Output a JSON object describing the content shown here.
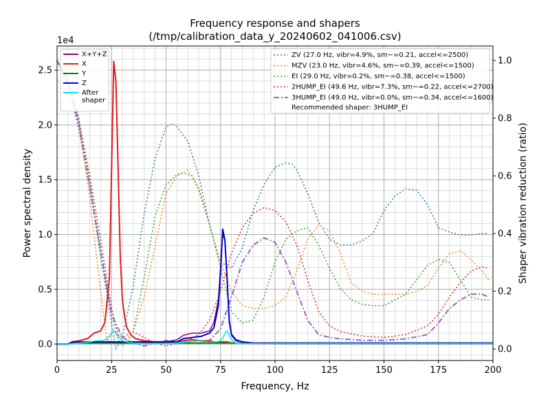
{
  "chart_data": {
    "type": "line",
    "title": "Frequency response and shapers",
    "subtitle": "(/tmp/calibration_data_y_20240602_041006.csv)",
    "xlabel": "Frequency, Hz",
    "ylabel": "Power spectral density",
    "y2label": "Shaper vibration reduction (ratio)",
    "y_offset_text": "1e4",
    "xlim": [
      0,
      200
    ],
    "ylim": [
      -0.15,
      2.72
    ],
    "y2lim": [
      -0.04,
      1.05
    ],
    "x_ticks": [
      0,
      25,
      50,
      75,
      100,
      125,
      150,
      175,
      200
    ],
    "x_tick_labels": [
      "0",
      "25",
      "50",
      "75",
      "100",
      "125",
      "150",
      "175",
      "200"
    ],
    "y_ticks": [
      0.0,
      0.5,
      1.0,
      1.5,
      2.0,
      2.5
    ],
    "y_tick_labels": [
      "0.0",
      "0.5",
      "1.0",
      "1.5",
      "2.0",
      "2.5"
    ],
    "y2_ticks": [
      0.0,
      0.2,
      0.4,
      0.6,
      0.8,
      1.0
    ],
    "y2_tick_labels": [
      "0.0",
      "0.2",
      "0.4",
      "0.6",
      "0.8",
      "1.0"
    ],
    "grid": true,
    "legend_left_placement": "top-left",
    "legend_right_placement": "top-right",
    "recommended_text": "Recommended shaper: 3HUMP_EI",
    "series": [
      {
        "name": "X+Y+Z",
        "axis": "left",
        "color": "#800080",
        "dash": "solid",
        "width": 1.5,
        "x": [
          0,
          5,
          7,
          10,
          14,
          17,
          20,
          22,
          24,
          25,
          26,
          27,
          28,
          29,
          30,
          31,
          32,
          34,
          36,
          40,
          45,
          50,
          55,
          58,
          62,
          66,
          70,
          72,
          74,
          75,
          76,
          77,
          78,
          79,
          80,
          82,
          85,
          90,
          95,
          100,
          110,
          130,
          150,
          170,
          200
        ],
        "y": [
          0,
          0,
          0.02,
          0.03,
          0.05,
          0.1,
          0.12,
          0.2,
          0.6,
          1.6,
          2.58,
          2.4,
          1.6,
          0.8,
          0.4,
          0.25,
          0.15,
          0.08,
          0.05,
          0.03,
          0.02,
          0.02,
          0.04,
          0.08,
          0.1,
          0.1,
          0.12,
          0.2,
          0.4,
          0.7,
          1.0,
          0.95,
          0.6,
          0.2,
          0.08,
          0.03,
          0.02,
          0.01,
          0.01,
          0.01,
          0.01,
          0.01,
          0.01,
          0.01,
          0.01
        ]
      },
      {
        "name": "X",
        "axis": "left",
        "color": "#e31a1c",
        "dash": "solid",
        "width": 2,
        "x": [
          0,
          5,
          7,
          10,
          14,
          17,
          20,
          22,
          24,
          25,
          26,
          27,
          28,
          29,
          30,
          31,
          32,
          34,
          36,
          40,
          45,
          50,
          55,
          58,
          62,
          66,
          70,
          72,
          74,
          76,
          78,
          80,
          85,
          90,
          100,
          130,
          160,
          200
        ],
        "y": [
          0,
          0,
          0.02,
          0.03,
          0.05,
          0.1,
          0.12,
          0.2,
          0.6,
          1.6,
          2.58,
          2.4,
          1.6,
          0.8,
          0.4,
          0.25,
          0.15,
          0.08,
          0.05,
          0.03,
          0.02,
          0.02,
          0.02,
          0.03,
          0.04,
          0.03,
          0.03,
          0.02,
          0.02,
          0.02,
          0.02,
          0.01,
          0.01,
          0.005,
          0.005,
          0.005,
          0.005,
          0.005
        ]
      },
      {
        "name": "Y",
        "axis": "left",
        "color": "#008000",
        "dash": "solid",
        "width": 2,
        "x": [
          0,
          5,
          7,
          10,
          20,
          30,
          40,
          50,
          60,
          70,
          80,
          90,
          100,
          130,
          160,
          200
        ],
        "y": [
          0,
          0,
          0.01,
          0.01,
          0.01,
          0.01,
          0.01,
          0.01,
          0.01,
          0.01,
          0.01,
          0.01,
          0.005,
          0.005,
          0.005,
          0.005
        ]
      },
      {
        "name": "Z",
        "axis": "left",
        "color": "#0000cd",
        "dash": "solid",
        "width": 2,
        "x": [
          0,
          5,
          7,
          10,
          20,
          30,
          40,
          50,
          55,
          58,
          62,
          66,
          70,
          72,
          74,
          75,
          76,
          77,
          78,
          79,
          80,
          82,
          85,
          90,
          100,
          130,
          160,
          200
        ],
        "y": [
          0,
          0,
          0.02,
          0.02,
          0.02,
          0.02,
          0.02,
          0.02,
          0.02,
          0.05,
          0.06,
          0.07,
          0.1,
          0.15,
          0.35,
          0.65,
          1.05,
          0.95,
          0.6,
          0.22,
          0.09,
          0.04,
          0.02,
          0.01,
          0.01,
          0.01,
          0.01,
          0.01
        ]
      },
      {
        "name": "After\nshaper",
        "axis": "left",
        "color": "#00e5ee",
        "dash": "solid",
        "width": 1.5,
        "x": [
          0,
          5,
          10,
          15,
          18,
          20,
          22,
          24,
          25,
          26,
          27,
          28,
          29,
          30,
          32,
          35,
          40,
          45,
          50,
          55,
          60,
          65,
          70,
          74,
          76,
          77,
          78,
          79,
          80,
          82,
          85,
          90,
          100,
          200
        ],
        "y": [
          0,
          0,
          0.01,
          0.02,
          0.03,
          0.03,
          0.04,
          0.07,
          0.1,
          0.12,
          0.1,
          0.07,
          0.05,
          0.03,
          0.02,
          0.01,
          0.005,
          0.005,
          0.005,
          0.01,
          0.02,
          0.03,
          0.02,
          0.02,
          0.05,
          0.1,
          0.12,
          0.08,
          0.04,
          0.01,
          0.005,
          0.005,
          0.005,
          0.005
        ]
      },
      {
        "name": "ZV (27.0 Hz, vibr=4.9%, sm~=0.21, accel<=2500)",
        "axis": "right",
        "color": "#1f77b4",
        "dash": "dot",
        "width": 1.5,
        "x": [
          0,
          5,
          10,
          15,
          20,
          25,
          27,
          30,
          35,
          40,
          45,
          50,
          53,
          55,
          60,
          65,
          70,
          75,
          80,
          85,
          90,
          95,
          100,
          105,
          108,
          110,
          115,
          120,
          125,
          130,
          135,
          140,
          145,
          150,
          155,
          160,
          165,
          170,
          175,
          180,
          185,
          190,
          195,
          198
        ],
        "y": [
          1.0,
          0.92,
          0.76,
          0.56,
          0.32,
          0.09,
          0.0,
          0.04,
          0.22,
          0.47,
          0.66,
          0.77,
          0.78,
          0.77,
          0.72,
          0.6,
          0.43,
          0.3,
          0.28,
          0.35,
          0.48,
          0.57,
          0.63,
          0.645,
          0.64,
          0.62,
          0.54,
          0.44,
          0.38,
          0.36,
          0.36,
          0.375,
          0.4,
          0.48,
          0.53,
          0.555,
          0.55,
          0.5,
          0.42,
          0.405,
          0.395,
          0.395,
          0.4,
          0.4
        ]
      },
      {
        "name": "MZV (23.0 Hz, vibr=4.6%, sm~=0.39, accel<=1500)",
        "axis": "right",
        "color": "#ff7f0e",
        "dash": "dot",
        "width": 1.5,
        "x": [
          0,
          5,
          10,
          15,
          20,
          23,
          25,
          28,
          30,
          35,
          40,
          45,
          50,
          55,
          60,
          65,
          70,
          75,
          80,
          85,
          90,
          95,
          100,
          105,
          110,
          115,
          120,
          125,
          130,
          135,
          140,
          145,
          150,
          155,
          160,
          165,
          170,
          175,
          180,
          185,
          190,
          195,
          198
        ],
        "y": [
          1.0,
          0.94,
          0.78,
          0.52,
          0.2,
          0.02,
          0.06,
          0.05,
          0.02,
          0.06,
          0.18,
          0.36,
          0.54,
          0.6,
          0.62,
          0.56,
          0.43,
          0.3,
          0.2,
          0.15,
          0.14,
          0.14,
          0.15,
          0.18,
          0.27,
          0.38,
          0.43,
          0.41,
          0.33,
          0.23,
          0.2,
          0.19,
          0.19,
          0.19,
          0.19,
          0.2,
          0.22,
          0.28,
          0.33,
          0.34,
          0.31,
          0.27,
          0.24
        ]
      },
      {
        "name": "EI (29.0 Hz, vibr=0.2%, sm~=0.38, accel<=1500)",
        "axis": "right",
        "color": "#2ca02c",
        "dash": "dot",
        "width": 1.5,
        "x": [
          0,
          5,
          10,
          15,
          20,
          25,
          28,
          30,
          32,
          35,
          40,
          45,
          50,
          55,
          58,
          62,
          65,
          70,
          75,
          80,
          85,
          90,
          95,
          100,
          105,
          110,
          115,
          120,
          125,
          130,
          135,
          140,
          145,
          150,
          155,
          160,
          165,
          170,
          175,
          180,
          185,
          190,
          195,
          198
        ],
        "y": [
          1.0,
          0.94,
          0.8,
          0.58,
          0.34,
          0.12,
          0.03,
          0.01,
          0.02,
          0.06,
          0.25,
          0.46,
          0.57,
          0.605,
          0.61,
          0.6,
          0.55,
          0.43,
          0.28,
          0.13,
          0.09,
          0.1,
          0.18,
          0.3,
          0.38,
          0.41,
          0.42,
          0.36,
          0.28,
          0.21,
          0.17,
          0.155,
          0.15,
          0.15,
          0.17,
          0.19,
          0.24,
          0.29,
          0.31,
          0.3,
          0.24,
          0.18,
          0.17,
          0.17
        ]
      },
      {
        "name": "2HUMP_EI (49.6 Hz, vibr=7.3%, sm~=0.22, accel<=2700)",
        "axis": "right",
        "color": "#d62728",
        "dash": "dot",
        "width": 1.5,
        "x": [
          0,
          5,
          10,
          15,
          20,
          25,
          28,
          30,
          35,
          40,
          45,
          50,
          55,
          60,
          65,
          70,
          75,
          80,
          85,
          90,
          95,
          100,
          105,
          110,
          115,
          120,
          125,
          130,
          140,
          150,
          160,
          170,
          175,
          180,
          185,
          190,
          195,
          198
        ],
        "y": [
          1.0,
          0.93,
          0.79,
          0.6,
          0.38,
          0.14,
          0.05,
          0.04,
          0.06,
          0.04,
          0.02,
          0.01,
          0.02,
          0.03,
          0.05,
          0.1,
          0.2,
          0.33,
          0.42,
          0.47,
          0.49,
          0.48,
          0.44,
          0.36,
          0.24,
          0.13,
          0.08,
          0.06,
          0.045,
          0.04,
          0.05,
          0.08,
          0.12,
          0.18,
          0.23,
          0.27,
          0.285,
          0.28
        ]
      },
      {
        "name": "3HUMP_EI (49.0 Hz, vibr=0.0%, sm~=0.34, accel<=1600)",
        "axis": "right",
        "color": "#9467bd",
        "dash": "dashdot",
        "width": 2,
        "x": [
          0,
          5,
          10,
          15,
          20,
          25,
          30,
          35,
          40,
          45,
          50,
          55,
          60,
          65,
          70,
          75,
          80,
          85,
          90,
          95,
          100,
          105,
          110,
          115,
          120,
          125,
          130,
          140,
          150,
          160,
          170,
          175,
          180,
          185,
          190,
          195,
          198
        ],
        "y": [
          1.0,
          0.92,
          0.78,
          0.56,
          0.34,
          0.12,
          0.04,
          0.02,
          0.01,
          0.02,
          0.03,
          0.02,
          0.02,
          0.02,
          0.03,
          0.07,
          0.18,
          0.3,
          0.36,
          0.385,
          0.37,
          0.3,
          0.2,
          0.1,
          0.05,
          0.04,
          0.035,
          0.03,
          0.03,
          0.035,
          0.05,
          0.09,
          0.14,
          0.17,
          0.19,
          0.19,
          0.18
        ]
      }
    ]
  }
}
